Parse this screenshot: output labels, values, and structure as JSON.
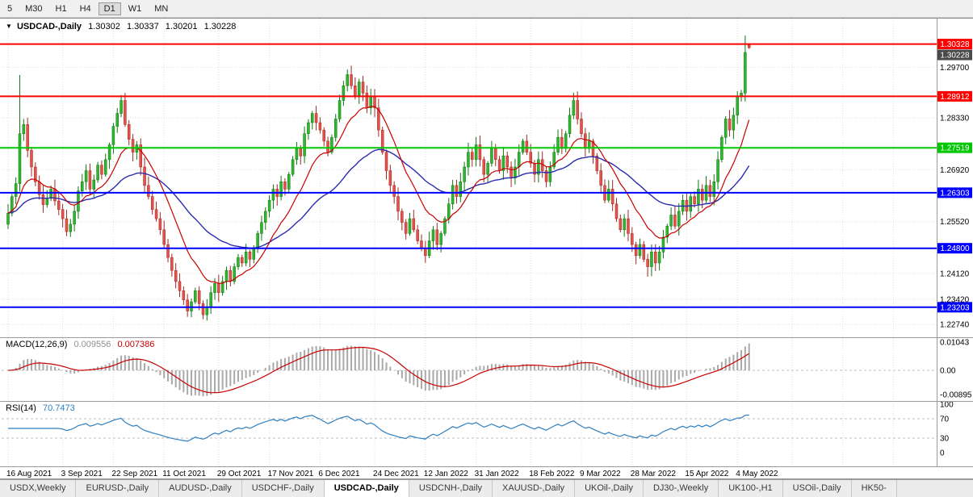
{
  "toolbar": {
    "timeframes": [
      {
        "label": "5",
        "active": false
      },
      {
        "label": "M30",
        "active": false
      },
      {
        "label": "H1",
        "active": false
      },
      {
        "label": "H4",
        "active": false
      },
      {
        "label": "D1",
        "active": true
      },
      {
        "label": "W1",
        "active": false
      },
      {
        "label": "MN",
        "active": false
      }
    ]
  },
  "chart": {
    "symbol_line": {
      "menu_icon": "▼",
      "symbol": "USDCAD-,Daily",
      "open": "1.30302",
      "high": "1.30337",
      "low": "1.30201",
      "close": "1.30228"
    },
    "macd": {
      "label": "MACD(12,26,9)",
      "main_value": "0.009556",
      "signal_value": "0.007386",
      "scale_labels": [
        "0.01043",
        "0.00",
        "-0.00895"
      ]
    },
    "rsi": {
      "label": "RSI(14)",
      "value": "70.7473",
      "scale": [
        100,
        70,
        30,
        0
      ],
      "levels": [
        70,
        30
      ]
    },
    "bid_badge": {
      "label": "1.30228",
      "color": "#4a4a4a"
    }
  },
  "chart_data": {
    "type": "candlestick",
    "title": "USDCAD-,Daily",
    "price_axis": {
      "top": 1.308,
      "bottom": 1.225,
      "ticks": [
        "1.29700",
        "1.28330",
        "1.26920",
        "1.25520",
        "1.24120",
        "1.23420",
        "1.22740"
      ]
    },
    "x_labels": [
      {
        "bar": 0,
        "label": "16 Aug 2021"
      },
      {
        "bar": 14,
        "label": "3 Sep 2021"
      },
      {
        "bar": 27,
        "label": "22 Sep 2021"
      },
      {
        "bar": 40,
        "label": "11 Oct 2021"
      },
      {
        "bar": 54,
        "label": "29 Oct 2021"
      },
      {
        "bar": 67,
        "label": "17 Nov 2021"
      },
      {
        "bar": 80,
        "label": "6 Dec 2021"
      },
      {
        "bar": 94,
        "label": "24 Dec 2021"
      },
      {
        "bar": 107,
        "label": "12 Jan 2022"
      },
      {
        "bar": 120,
        "label": "31 Jan 2022"
      },
      {
        "bar": 134,
        "label": "18 Feb 2022"
      },
      {
        "bar": 147,
        "label": "9 Mar 2022"
      },
      {
        "bar": 160,
        "label": "28 Mar 2022"
      },
      {
        "bar": 174,
        "label": "15 Apr 2022"
      },
      {
        "bar": 187,
        "label": "4 May 2022"
      }
    ],
    "horizontal_levels": [
      {
        "price": 1.30328,
        "label": "1.30328",
        "color": "#ff0000"
      },
      {
        "price": 1.28912,
        "label": "1.28912",
        "color": "#ff0000"
      },
      {
        "price": 1.27519,
        "label": "1.27519",
        "color": "#00c800"
      },
      {
        "price": 1.26303,
        "label": "1.26303",
        "color": "#0000ff"
      },
      {
        "price": 1.248,
        "label": "1.24800",
        "color": "#0000ff"
      },
      {
        "price": 1.23203,
        "label": "1.23203",
        "color": "#0000ff"
      }
    ],
    "first_open": 1.2545,
    "closes": [
      1.2575,
      1.262,
      1.2655,
      1.279,
      1.2815,
      1.2745,
      1.27,
      1.266,
      1.2625,
      1.2598,
      1.2615,
      1.264,
      1.2608,
      1.2585,
      1.256,
      1.2525,
      1.2545,
      1.258,
      1.2635,
      1.266,
      1.269,
      1.264,
      1.2665,
      1.2705,
      1.268,
      1.272,
      1.276,
      1.281,
      1.2845,
      1.288,
      1.2815,
      1.2775,
      1.274,
      1.276,
      1.27,
      1.265,
      1.262,
      1.2585,
      1.256,
      1.253,
      1.249,
      1.2455,
      1.242,
      1.239,
      1.2365,
      1.234,
      1.231,
      1.2335,
      1.2365,
      1.233,
      1.23,
      1.232,
      1.236,
      1.2385,
      1.236,
      1.239,
      1.242,
      1.239,
      1.243,
      1.2455,
      1.244,
      1.247,
      1.245,
      1.248,
      1.252,
      1.255,
      1.258,
      1.261,
      1.264,
      1.262,
      1.266,
      1.264,
      1.268,
      1.272,
      1.275,
      1.273,
      1.279,
      1.282,
      1.2845,
      1.282,
      1.28,
      1.277,
      1.274,
      1.278,
      1.283,
      1.288,
      1.292,
      1.295,
      1.292,
      1.289,
      1.293,
      1.29,
      1.286,
      1.289,
      1.286,
      1.28,
      1.274,
      1.269,
      1.265,
      1.262,
      1.258,
      1.255,
      1.252,
      1.256,
      1.253,
      1.25,
      1.248,
      1.246,
      1.25,
      1.253,
      1.249,
      1.252,
      1.256,
      1.26,
      1.265,
      1.262,
      1.266,
      1.27,
      1.274,
      1.272,
      1.276,
      1.272,
      1.268,
      1.271,
      1.275,
      1.272,
      1.269,
      1.273,
      1.27,
      1.267,
      1.27,
      1.274,
      1.277,
      1.274,
      1.271,
      1.268,
      1.272,
      1.269,
      1.266,
      1.27,
      1.274,
      1.278,
      1.275,
      1.279,
      1.284,
      1.288,
      1.283,
      1.279,
      1.275,
      1.277,
      1.273,
      1.269,
      1.265,
      1.261,
      1.264,
      1.26,
      1.256,
      1.253,
      1.256,
      1.252,
      1.249,
      1.246,
      1.249,
      1.245,
      1.243,
      1.247,
      1.244,
      1.247,
      1.251,
      1.254,
      1.257,
      1.254,
      1.258,
      1.261,
      1.258,
      1.262,
      1.26,
      1.264,
      1.261,
      1.265,
      1.262,
      1.266,
      1.272,
      1.278,
      1.283,
      1.28,
      1.284,
      1.289,
      1.29,
      1.301,
      1.30228
    ],
    "candle_overrides": {
      "3": {
        "h": 1.2949
      },
      "29": {
        "h": 1.2895
      },
      "50": {
        "l": 1.2288
      },
      "87": {
        "h": 1.2964
      },
      "145": {
        "h": 1.2901
      },
      "164": {
        "l": 1.2403
      },
      "189": {
        "h": 1.3056
      },
      "190": {
        "o": 1.30302,
        "h": 1.30337,
        "l": 1.30201,
        "c": 1.30228
      }
    },
    "indicators": {
      "ma_fast": {
        "kind": "ema",
        "period": 13,
        "color": "#c80000"
      },
      "ma_slow": {
        "kind": "ema",
        "period": 40,
        "color": "#2b2bb0"
      },
      "macd": {
        "fast": 12,
        "slow": 26,
        "signal": 9,
        "current_main": 0.009556,
        "current_signal": 0.007386,
        "hist_color": "#a9a9a9",
        "signal_color": "#c80000"
      },
      "rsi": {
        "period": 14,
        "current": 70.7473,
        "line_color": "#2e7fc1",
        "levels": [
          70,
          30
        ]
      }
    },
    "colors": {
      "up_candle": "#2fb52f",
      "up_border": "#117711",
      "down_candle": "#e4524b",
      "down_border": "#a02a24",
      "grid": "#dedede",
      "divider": "#9a9a9a",
      "level_dash": "#bebebe"
    }
  },
  "tabs": {
    "items": [
      {
        "label": "USDX,Weekly",
        "active": false
      },
      {
        "label": "EURUSD-,Daily",
        "active": false
      },
      {
        "label": "AUDUSD-,Daily",
        "active": false
      },
      {
        "label": "USDCHF-,Daily",
        "active": false
      },
      {
        "label": "USDCAD-,Daily",
        "active": true
      },
      {
        "label": "USDCNH-,Daily",
        "active": false
      },
      {
        "label": "XAUUSD-,Daily",
        "active": false
      },
      {
        "label": "UKOil-,Daily",
        "active": false
      },
      {
        "label": "DJ30-,Weekly",
        "active": false
      },
      {
        "label": "UK100-,H1",
        "active": false
      },
      {
        "label": "USOil-,Daily",
        "active": false
      },
      {
        "label": "HK50-",
        "active": false
      }
    ]
  }
}
